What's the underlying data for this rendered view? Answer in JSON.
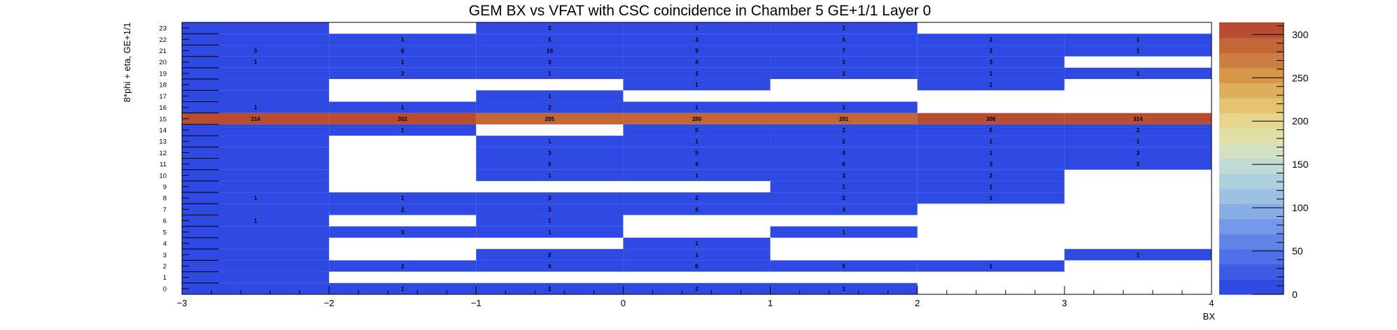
{
  "chart_data": {
    "type": "heatmap",
    "title": "GEM BX vs VFAT with CSC coincidence in Chamber 5 GE+1/1 Layer 0",
    "xlabel": "BX",
    "ylabel": "8*phi + eta, GE+1/1",
    "xlim": [
      -3,
      4
    ],
    "x_tick_labels": [
      "−3",
      "−2",
      "−1",
      "0",
      "1",
      "2",
      "3",
      "4"
    ],
    "ylim": [
      0,
      24
    ],
    "y_tick_labels": [
      "0",
      "1",
      "2",
      "3",
      "4",
      "5",
      "6",
      "7",
      "8",
      "9",
      "10",
      "11",
      "12",
      "13",
      "14",
      "15",
      "16",
      "17",
      "18",
      "19",
      "20",
      "21",
      "22",
      "23"
    ],
    "x_bins": [
      -3,
      -2,
      -1,
      0,
      1,
      2,
      3
    ],
    "x_bin_width": 1,
    "first_col_bin_edges": [
      -3,
      -2.75
    ],
    "z_range": [
      0,
      314
    ],
    "z_tick_labels": [
      "0",
      "50",
      "100",
      "150",
      "200",
      "250",
      "300"
    ],
    "grid": false,
    "colorbar": "right",
    "palette": [
      "#2f49e3",
      "#3d5ce6",
      "#4f70e8",
      "#6185e9",
      "#7599ea",
      "#88aee8",
      "#9bc0e2",
      "#aed0dc",
      "#c2dbd4",
      "#d4e0c2",
      "#e0dfa8",
      "#e6d58e",
      "#e4c472",
      "#deaf5b",
      "#d6974b",
      "#cc7e40",
      "#c26537",
      "#b94c31"
    ],
    "cells": [
      {
        "x": -3,
        "y": 23,
        "v": 0
      },
      {
        "x": -1,
        "y": 23,
        "v": 2
      },
      {
        "x": 0,
        "y": 23,
        "v": 1
      },
      {
        "x": 1,
        "y": 23,
        "v": 1
      },
      {
        "x": -3,
        "y": 22,
        "v": 0
      },
      {
        "x": -2,
        "y": 22,
        "v": 1
      },
      {
        "x": -1,
        "y": 22,
        "v": 5
      },
      {
        "x": 0,
        "y": 22,
        "v": 3
      },
      {
        "x": 1,
        "y": 22,
        "v": 6
      },
      {
        "x": 2,
        "y": 22,
        "v": 2
      },
      {
        "x": 3,
        "y": 22,
        "v": 1
      },
      {
        "x": -3,
        "y": 21,
        "v": 3
      },
      {
        "x": -2,
        "y": 21,
        "v": 6
      },
      {
        "x": -1,
        "y": 21,
        "v": 10
      },
      {
        "x": 0,
        "y": 21,
        "v": 9
      },
      {
        "x": 1,
        "y": 21,
        "v": 7
      },
      {
        "x": 2,
        "y": 21,
        "v": 3
      },
      {
        "x": 3,
        "y": 21,
        "v": 1
      },
      {
        "x": -3,
        "y": 20,
        "v": 1
      },
      {
        "x": -2,
        "y": 20,
        "v": 1
      },
      {
        "x": -1,
        "y": 20,
        "v": 3
      },
      {
        "x": 0,
        "y": 20,
        "v": 4
      },
      {
        "x": 1,
        "y": 20,
        "v": 2
      },
      {
        "x": 2,
        "y": 20,
        "v": 3
      },
      {
        "x": -3,
        "y": 19,
        "v": 0
      },
      {
        "x": -2,
        "y": 19,
        "v": 2
      },
      {
        "x": -1,
        "y": 19,
        "v": 1
      },
      {
        "x": 0,
        "y": 19,
        "v": 3
      },
      {
        "x": 1,
        "y": 19,
        "v": 2
      },
      {
        "x": 2,
        "y": 19,
        "v": 1
      },
      {
        "x": 3,
        "y": 19,
        "v": 1
      },
      {
        "x": -3,
        "y": 18,
        "v": 0
      },
      {
        "x": 0,
        "y": 18,
        "v": 1
      },
      {
        "x": 2,
        "y": 18,
        "v": 1
      },
      {
        "x": -3,
        "y": 17,
        "v": 0
      },
      {
        "x": -1,
        "y": 17,
        "v": 1
      },
      {
        "x": -3,
        "y": 16,
        "v": 1
      },
      {
        "x": -2,
        "y": 16,
        "v": 1
      },
      {
        "x": -1,
        "y": 16,
        "v": 2
      },
      {
        "x": 0,
        "y": 16,
        "v": 1
      },
      {
        "x": 1,
        "y": 16,
        "v": 1
      },
      {
        "x": -3,
        "y": 15,
        "v": 314
      },
      {
        "x": -2,
        "y": 15,
        "v": 302
      },
      {
        "x": -1,
        "y": 15,
        "v": 285
      },
      {
        "x": 0,
        "y": 15,
        "v": 280
      },
      {
        "x": 1,
        "y": 15,
        "v": 291
      },
      {
        "x": 2,
        "y": 15,
        "v": 306
      },
      {
        "x": 3,
        "y": 15,
        "v": 314
      },
      {
        "x": -3,
        "y": 14,
        "v": 0
      },
      {
        "x": -2,
        "y": 14,
        "v": 1
      },
      {
        "x": 0,
        "y": 14,
        "v": 5
      },
      {
        "x": 1,
        "y": 14,
        "v": 2
      },
      {
        "x": 2,
        "y": 14,
        "v": 5
      },
      {
        "x": 3,
        "y": 14,
        "v": 2
      },
      {
        "x": -3,
        "y": 13,
        "v": 0
      },
      {
        "x": -1,
        "y": 13,
        "v": 1
      },
      {
        "x": 0,
        "y": 13,
        "v": 1
      },
      {
        "x": 1,
        "y": 13,
        "v": 2
      },
      {
        "x": 2,
        "y": 13,
        "v": 1
      },
      {
        "x": 3,
        "y": 13,
        "v": 1
      },
      {
        "x": -3,
        "y": 12,
        "v": 0
      },
      {
        "x": -1,
        "y": 12,
        "v": 3
      },
      {
        "x": 0,
        "y": 12,
        "v": 5
      },
      {
        "x": 1,
        "y": 12,
        "v": 6
      },
      {
        "x": 2,
        "y": 12,
        "v": 1
      },
      {
        "x": 3,
        "y": 12,
        "v": 3
      },
      {
        "x": -3,
        "y": 11,
        "v": 0
      },
      {
        "x": -1,
        "y": 11,
        "v": 5
      },
      {
        "x": 0,
        "y": 11,
        "v": 4
      },
      {
        "x": 1,
        "y": 11,
        "v": 6
      },
      {
        "x": 2,
        "y": 11,
        "v": 3
      },
      {
        "x": 3,
        "y": 11,
        "v": 2
      },
      {
        "x": -3,
        "y": 10,
        "v": 0
      },
      {
        "x": -1,
        "y": 10,
        "v": 1
      },
      {
        "x": 0,
        "y": 10,
        "v": 1
      },
      {
        "x": 1,
        "y": 10,
        "v": 3
      },
      {
        "x": 2,
        "y": 10,
        "v": 2
      },
      {
        "x": -3,
        "y": 9,
        "v": 0
      },
      {
        "x": 1,
        "y": 9,
        "v": 1
      },
      {
        "x": 2,
        "y": 9,
        "v": 1
      },
      {
        "x": -3,
        "y": 8,
        "v": 1
      },
      {
        "x": -2,
        "y": 8,
        "v": 1
      },
      {
        "x": -1,
        "y": 8,
        "v": 3
      },
      {
        "x": 0,
        "y": 8,
        "v": 2
      },
      {
        "x": 1,
        "y": 8,
        "v": 2
      },
      {
        "x": 2,
        "y": 8,
        "v": 1
      },
      {
        "x": -3,
        "y": 7,
        "v": 0
      },
      {
        "x": -2,
        "y": 7,
        "v": 2
      },
      {
        "x": -1,
        "y": 7,
        "v": 3
      },
      {
        "x": 0,
        "y": 7,
        "v": 4
      },
      {
        "x": 1,
        "y": 7,
        "v": 4
      },
      {
        "x": -3,
        "y": 6,
        "v": 1
      },
      {
        "x": -1,
        "y": 6,
        "v": 1
      },
      {
        "x": -3,
        "y": 5,
        "v": 0
      },
      {
        "x": -2,
        "y": 5,
        "v": 3
      },
      {
        "x": -1,
        "y": 5,
        "v": 1
      },
      {
        "x": 1,
        "y": 5,
        "v": 1
      },
      {
        "x": -3,
        "y": 4,
        "v": 0
      },
      {
        "x": 0,
        "y": 4,
        "v": 1
      },
      {
        "x": -3,
        "y": 3,
        "v": 0
      },
      {
        "x": -1,
        "y": 3,
        "v": 2
      },
      {
        "x": 0,
        "y": 3,
        "v": 1
      },
      {
        "x": 3,
        "y": 3,
        "v": 1
      },
      {
        "x": -3,
        "y": 2,
        "v": 0
      },
      {
        "x": -2,
        "y": 2,
        "v": 2
      },
      {
        "x": -1,
        "y": 2,
        "v": 4
      },
      {
        "x": 0,
        "y": 2,
        "v": 6
      },
      {
        "x": 1,
        "y": 2,
        "v": 5
      },
      {
        "x": 2,
        "y": 2,
        "v": 1
      },
      {
        "x": -3,
        "y": 1,
        "v": 0
      },
      {
        "x": -3,
        "y": 0,
        "v": 0
      },
      {
        "x": -2,
        "y": 0,
        "v": 1
      },
      {
        "x": -1,
        "y": 0,
        "v": 2
      },
      {
        "x": 0,
        "y": 0,
        "v": 2
      },
      {
        "x": 1,
        "y": 0,
        "v": 1
      }
    ]
  }
}
